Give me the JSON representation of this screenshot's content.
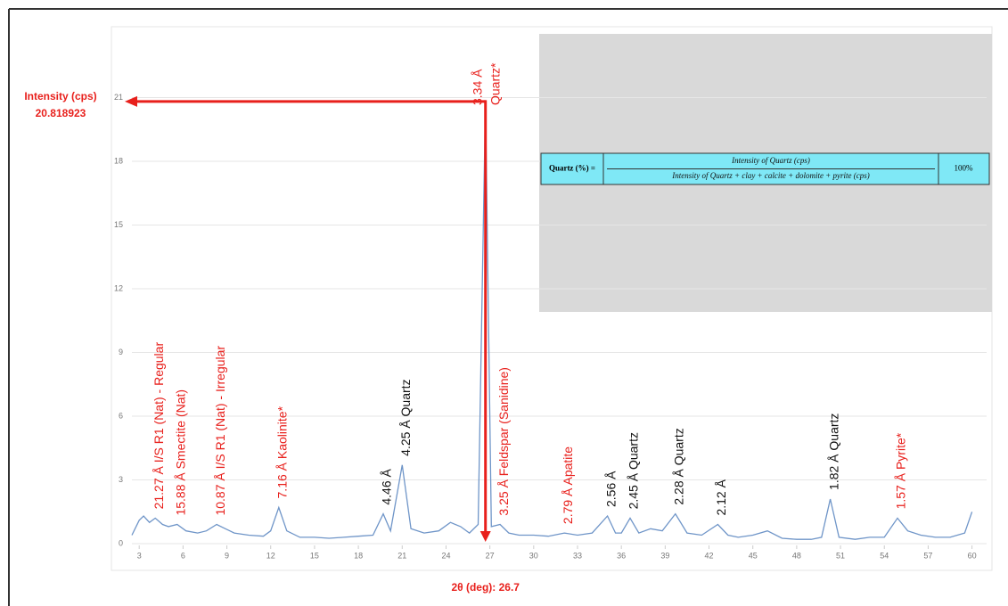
{
  "chart_data": {
    "type": "line",
    "x_marker": {
      "x": 26.7,
      "label": "2θ (deg): 26.7",
      "color": "#e8201c"
    },
    "y_marker": {
      "y": 20.818923,
      "label": "Intensity (cps)",
      "value_label": "20.818923",
      "color": "#e8201c"
    },
    "x": [
      2.5,
      3.0,
      3.3,
      3.7,
      4.1,
      4.6,
      5.0,
      5.6,
      6.2,
      7.0,
      7.6,
      8.3,
      8.9,
      9.5,
      10.5,
      11.5,
      12.0,
      12.55,
      13.1,
      14,
      15,
      16,
      17,
      18,
      19,
      19.7,
      20.2,
      21.0,
      21.6,
      22.5,
      23.5,
      24.3,
      25,
      25.6,
      26.2,
      26.7,
      27.1,
      27.7,
      28.3,
      29,
      30,
      31,
      32.1,
      33,
      34,
      35.05,
      35.6,
      36,
      36.6,
      37.2,
      38,
      38.8,
      39.7,
      40.5,
      41.5,
      42.6,
      43.3,
      44,
      45,
      46,
      47,
      48,
      49,
      49.7,
      50.3,
      50.9,
      52,
      53,
      54,
      54.9,
      55.6,
      56.5,
      57.5,
      58.5,
      59.5,
      60
    ],
    "series": [
      {
        "name": "Intensity",
        "color": "#6f95c8",
        "values": [
          0.4,
          1.1,
          1.3,
          1.0,
          1.2,
          0.9,
          0.8,
          0.9,
          0.6,
          0.5,
          0.6,
          0.9,
          0.7,
          0.5,
          0.4,
          0.35,
          0.6,
          1.7,
          0.6,
          0.3,
          0.3,
          0.25,
          0.3,
          0.35,
          0.4,
          1.4,
          0.6,
          3.7,
          0.7,
          0.5,
          0.6,
          1.0,
          0.8,
          0.5,
          0.9,
          20.818923,
          0.8,
          0.9,
          0.5,
          0.4,
          0.4,
          0.35,
          0.5,
          0.4,
          0.5,
          1.3,
          0.5,
          0.5,
          1.2,
          0.5,
          0.7,
          0.6,
          1.4,
          0.5,
          0.4,
          0.9,
          0.4,
          0.3,
          0.4,
          0.6,
          0.25,
          0.2,
          0.2,
          0.3,
          2.1,
          0.3,
          0.2,
          0.3,
          0.3,
          1.2,
          0.6,
          0.4,
          0.3,
          0.3,
          0.5,
          1.5
        ]
      }
    ],
    "xlim": [
      2.5,
      61
    ],
    "xticks": [
      3,
      6,
      9,
      12,
      15,
      18,
      21,
      24,
      27,
      30,
      33,
      36,
      39,
      42,
      45,
      48,
      51,
      54,
      57,
      60
    ],
    "ylim": [
      0,
      24
    ],
    "yticks": [
      0,
      3,
      6,
      9,
      12,
      15,
      18,
      21
    ],
    "grid": true,
    "annotations": [
      {
        "text": "21.27 Å I/S R1 (Nat) - Regular",
        "x": 4.1,
        "color": "#e8201c"
      },
      {
        "text": "15.88 Å Smectite (Nat)",
        "x": 5.6,
        "color": "#e8201c"
      },
      {
        "text": "10.87 Å I/S R1 (Nat) - Irregular",
        "x": 8.3,
        "color": "#e8201c"
      },
      {
        "text": "7.16 Å Kaolinite*",
        "x": 12.55,
        "color": "#e8201c"
      },
      {
        "text": "4.46 Å",
        "x": 19.7,
        "color": "#111111"
      },
      {
        "text": "4.25 Å Quartz",
        "x": 21.0,
        "color": "#111111"
      },
      {
        "text": "3.25 Å Feldspar (Sanidine)",
        "x": 27.7,
        "color": "#e8201c"
      },
      {
        "text": "2.79 Å Apatite",
        "x": 32.1,
        "color": "#e8201c"
      },
      {
        "text": "2.56 Å",
        "x": 35.05,
        "color": "#111111"
      },
      {
        "text": "2.45 Å Quartz",
        "x": 36.6,
        "color": "#111111"
      },
      {
        "text": "2.28 Å Quartz",
        "x": 39.7,
        "color": "#111111"
      },
      {
        "text": "2.12 Å",
        "x": 42.6,
        "color": "#111111"
      },
      {
        "text": "1.82 Å Quartz",
        "x": 50.3,
        "color": "#111111"
      },
      {
        "text": "1.57 Å Pyrite*",
        "x": 54.9,
        "color": "#e8201c"
      }
    ],
    "peak_label": {
      "lines": [
        "3.34 Å",
        "Quartz*"
      ],
      "x": 26.7,
      "color": "#e8201c"
    },
    "formula": {
      "lhs": "Quartz (%) =",
      "numerator": "Intensity of Quartz (cps)",
      "denominator": "Intensity of Quartz + clay + calcite + dolomite + pyrite (cps)",
      "factor": "100%"
    }
  }
}
